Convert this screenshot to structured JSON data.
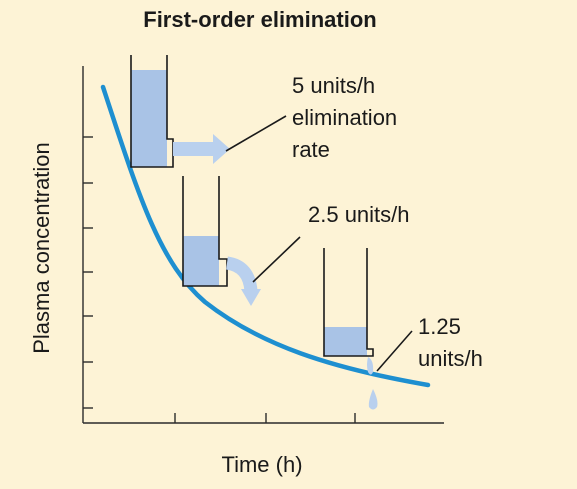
{
  "title": "First-order elimination",
  "ylabel": "Plasma concentration",
  "xlabel": "Time (h)",
  "annotations": [
    {
      "lines": [
        "5 units/h",
        "elimination",
        "rate"
      ]
    },
    {
      "lines": [
        "2.5 units/h"
      ]
    },
    {
      "lines": [
        "1.25",
        "units/h"
      ]
    }
  ],
  "colors": {
    "background": "#fdf3d6",
    "curve": "#1e8fd0",
    "liquid": "#a9c3e6",
    "arrow": "#b9d0ee"
  },
  "icons": [
    "beaker-icon",
    "outflow-arrow-icon",
    "drop-icon"
  ]
}
